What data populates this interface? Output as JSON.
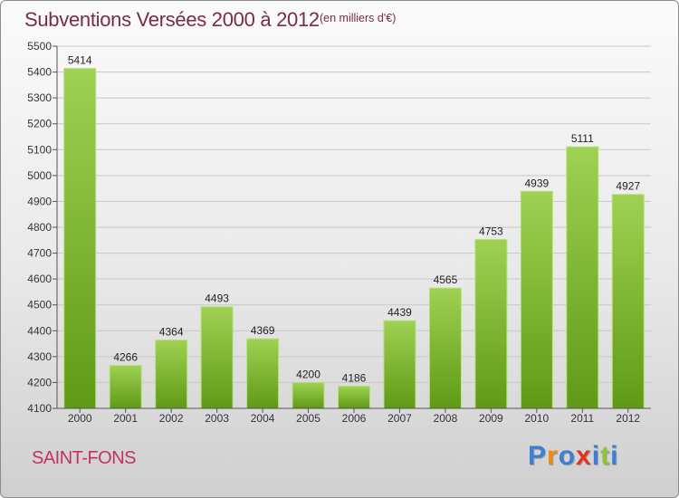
{
  "header": {
    "title": "Subventions Versées 2000 à 2012",
    "unit": "(en milliers d'€)"
  },
  "footer": {
    "city": "SAINT-FONS",
    "logo_text": "Proxiti"
  },
  "colors": {
    "title": "#7a2a4a",
    "city": "#c4335f",
    "bar_light": "#9fd153",
    "bar_dark": "#5f9a16",
    "grid": "#c8c8c8",
    "logo": [
      "#3f7fd1",
      "#ee8a16",
      "#3f7fd1",
      "#e6321e",
      "#3f7fd1",
      "#8fc13b",
      "#3f7fd1"
    ]
  },
  "chart_data": {
    "type": "bar",
    "title": "Subventions Versées 2000 à 2012",
    "subtitle": "(en milliers d'€)",
    "categories": [
      "2000",
      "2001",
      "2002",
      "2003",
      "2004",
      "2005",
      "2006",
      "2007",
      "2008",
      "2009",
      "2010",
      "2011",
      "2012"
    ],
    "values": [
      5414,
      4266,
      4364,
      4493,
      4369,
      4200,
      4186,
      4439,
      4565,
      4753,
      4939,
      5111,
      4927
    ],
    "ylim": [
      4100,
      5500
    ],
    "yticks": [
      4100,
      4200,
      4300,
      4400,
      4500,
      4600,
      4700,
      4800,
      4900,
      5000,
      5100,
      5200,
      5300,
      5400,
      5500
    ],
    "grid": true,
    "legend": "none",
    "data_labels": true
  }
}
